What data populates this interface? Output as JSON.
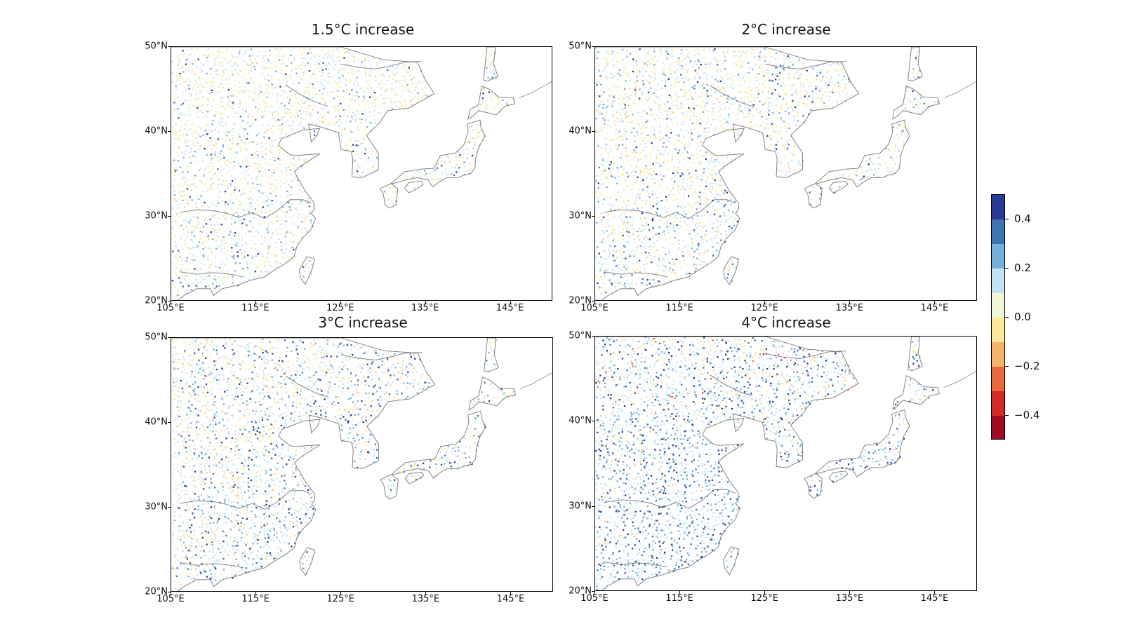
{
  "panels": [
    {
      "title": "1.5°C increase",
      "intensity": 0.12
    },
    {
      "title": "2°C increase",
      "intensity": 0.22
    },
    {
      "title": "3°C increase",
      "intensity": 0.45
    },
    {
      "title": "4°C increase",
      "intensity": 0.75
    }
  ],
  "lat_ticks": [
    "50°N",
    "40°N",
    "30°N",
    "20°N"
  ],
  "lon_ticks": [
    "105°E",
    "115°E",
    "125°E",
    "135°E",
    "145°E"
  ],
  "colorbar": {
    "levels": [
      {
        "color": "#2b3a94"
      },
      {
        "color": "#3e73b4"
      },
      {
        "color": "#76afd8"
      },
      {
        "color": "#c3e3f0"
      },
      {
        "color": "#eef5d8"
      },
      {
        "color": "#fde79a"
      },
      {
        "color": "#f6b36a"
      },
      {
        "color": "#e8683e"
      },
      {
        "color": "#cf2b27"
      },
      {
        "color": "#a10b26"
      }
    ],
    "tick_labels": [
      "0.4",
      "0.2",
      "0.0",
      "−0.2",
      "−0.4"
    ]
  }
}
